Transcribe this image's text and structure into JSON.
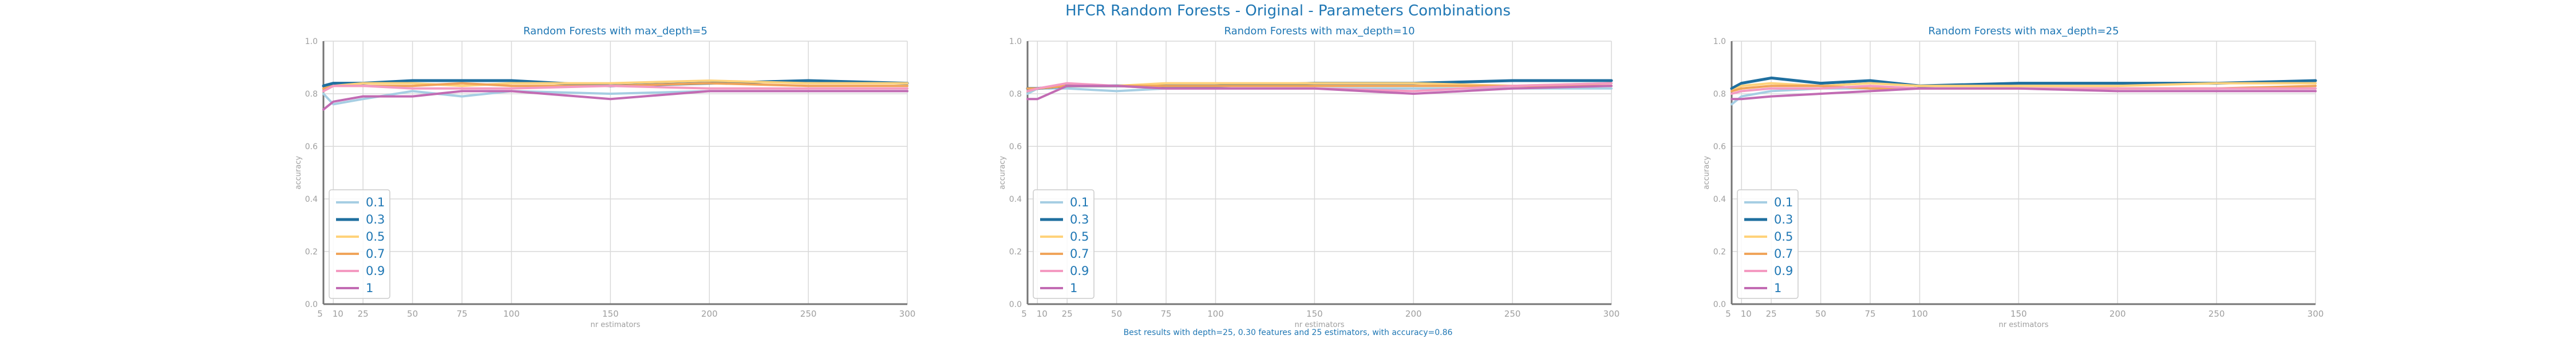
{
  "figure": {
    "title": "HFCR Random Forests - Original - Parameters Combinations",
    "footnote": "Best results with depth=25, 0.30 features and 25 estimators, with accuracy=0.86"
  },
  "colors": {
    "title": "#1f77b4",
    "axis_text": "#9e9e9e",
    "grid": "#d9d9d9",
    "axis_line": "#757575",
    "series": [
      "#a6cee3",
      "#1f6f9f",
      "#ffd27a",
      "#f0a45a",
      "#f49ac1",
      "#c26bb3"
    ]
  },
  "chart_data": [
    {
      "type": "line",
      "title": "Random Forests with max_depth=5",
      "xlabel": "nr estimators",
      "ylabel": "accuracy",
      "x": [
        5,
        10,
        25,
        50,
        75,
        100,
        150,
        200,
        250,
        300
      ],
      "xticks": [
        5,
        10,
        25,
        50,
        75,
        100,
        150,
        200,
        250,
        300
      ],
      "yticks": [
        0.0,
        0.2,
        0.4,
        0.6,
        0.8,
        1.0
      ],
      "xlim": [
        5,
        300
      ],
      "ylim": [
        0,
        1
      ],
      "grid": true,
      "legend_position": "lower-left",
      "series": [
        {
          "name": "0.1",
          "values": [
            0.8,
            0.76,
            0.78,
            0.81,
            0.79,
            0.81,
            0.8,
            0.81,
            0.81,
            0.81
          ]
        },
        {
          "name": "0.3",
          "values": [
            0.83,
            0.84,
            0.84,
            0.85,
            0.85,
            0.85,
            0.83,
            0.84,
            0.85,
            0.84
          ]
        },
        {
          "name": "0.5",
          "values": [
            0.81,
            0.83,
            0.84,
            0.84,
            0.83,
            0.84,
            0.84,
            0.85,
            0.84,
            0.84
          ]
        },
        {
          "name": "0.7",
          "values": [
            0.82,
            0.83,
            0.83,
            0.83,
            0.84,
            0.83,
            0.83,
            0.84,
            0.83,
            0.83
          ]
        },
        {
          "name": "0.9",
          "values": [
            0.81,
            0.83,
            0.83,
            0.82,
            0.82,
            0.82,
            0.83,
            0.82,
            0.82,
            0.82
          ]
        },
        {
          "name": "1",
          "values": [
            0.74,
            0.77,
            0.79,
            0.79,
            0.81,
            0.81,
            0.78,
            0.81,
            0.81,
            0.81
          ]
        }
      ]
    },
    {
      "type": "line",
      "title": "Random Forests with max_depth=10",
      "xlabel": "nr estimators",
      "ylabel": "accuracy",
      "x": [
        5,
        10,
        25,
        50,
        75,
        100,
        150,
        200,
        250,
        300
      ],
      "xticks": [
        5,
        10,
        25,
        50,
        75,
        100,
        150,
        200,
        250,
        300
      ],
      "yticks": [
        0.0,
        0.2,
        0.4,
        0.6,
        0.8,
        1.0
      ],
      "xlim": [
        5,
        300
      ],
      "ylim": [
        0,
        1
      ],
      "grid": true,
      "legend_position": "lower-left",
      "series": [
        {
          "name": "0.1",
          "values": [
            0.8,
            0.82,
            0.82,
            0.81,
            0.82,
            0.82,
            0.82,
            0.82,
            0.82,
            0.82
          ]
        },
        {
          "name": "0.3",
          "values": [
            0.82,
            0.82,
            0.83,
            0.83,
            0.83,
            0.83,
            0.84,
            0.84,
            0.85,
            0.85
          ]
        },
        {
          "name": "0.5",
          "values": [
            0.81,
            0.82,
            0.83,
            0.83,
            0.84,
            0.84,
            0.84,
            0.84,
            0.83,
            0.84
          ]
        },
        {
          "name": "0.7",
          "values": [
            0.82,
            0.82,
            0.83,
            0.83,
            0.83,
            0.83,
            0.83,
            0.83,
            0.83,
            0.83
          ]
        },
        {
          "name": "0.9",
          "values": [
            0.81,
            0.82,
            0.84,
            0.83,
            0.82,
            0.82,
            0.82,
            0.81,
            0.83,
            0.84
          ]
        },
        {
          "name": "1",
          "values": [
            0.78,
            0.78,
            0.83,
            0.83,
            0.82,
            0.82,
            0.82,
            0.8,
            0.82,
            0.83
          ]
        }
      ]
    },
    {
      "type": "line",
      "title": "Random Forests with max_depth=25",
      "xlabel": "nr estimators",
      "ylabel": "accuracy",
      "x": [
        5,
        10,
        25,
        50,
        75,
        100,
        150,
        200,
        250,
        300
      ],
      "xticks": [
        5,
        10,
        25,
        50,
        75,
        100,
        150,
        200,
        250,
        300
      ],
      "yticks": [
        0.0,
        0.2,
        0.4,
        0.6,
        0.8,
        1.0
      ],
      "xlim": [
        5,
        300
      ],
      "ylim": [
        0,
        1
      ],
      "grid": true,
      "legend_position": "lower-left",
      "series": [
        {
          "name": "0.1",
          "values": [
            0.76,
            0.79,
            0.81,
            0.82,
            0.82,
            0.82,
            0.82,
            0.82,
            0.82,
            0.82
          ]
        },
        {
          "name": "0.3",
          "values": [
            0.82,
            0.84,
            0.86,
            0.84,
            0.85,
            0.83,
            0.84,
            0.84,
            0.84,
            0.85
          ]
        },
        {
          "name": "0.5",
          "values": [
            0.81,
            0.83,
            0.84,
            0.83,
            0.84,
            0.83,
            0.83,
            0.83,
            0.84,
            0.84
          ]
        },
        {
          "name": "0.7",
          "values": [
            0.81,
            0.82,
            0.83,
            0.83,
            0.82,
            0.82,
            0.82,
            0.82,
            0.82,
            0.83
          ]
        },
        {
          "name": "0.9",
          "values": [
            0.8,
            0.81,
            0.82,
            0.82,
            0.83,
            0.82,
            0.82,
            0.82,
            0.82,
            0.82
          ]
        },
        {
          "name": "1",
          "values": [
            0.78,
            0.78,
            0.79,
            0.8,
            0.81,
            0.82,
            0.82,
            0.81,
            0.81,
            0.81
          ]
        }
      ]
    }
  ]
}
